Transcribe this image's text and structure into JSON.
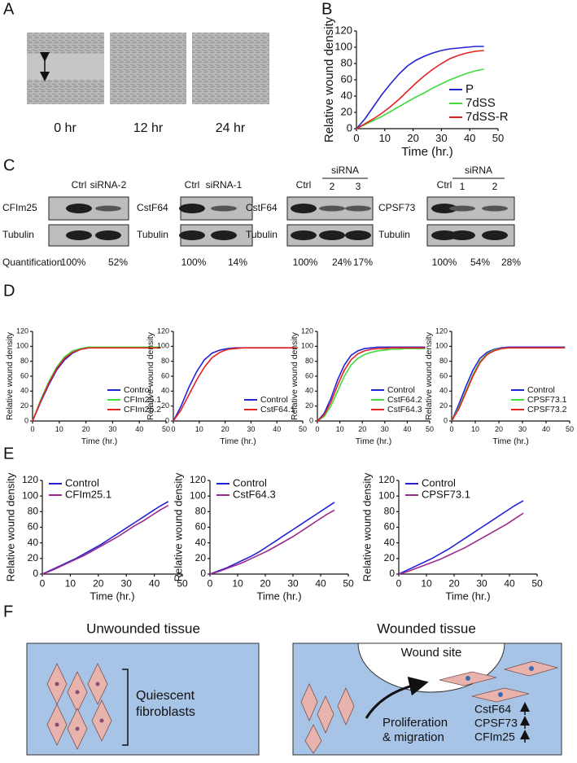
{
  "panels": [
    "A",
    "B",
    "C",
    "D",
    "E",
    "F"
  ],
  "scratch_times": [
    "0 hr",
    "12 hr",
    "24 hr"
  ],
  "quantification_label": "Quantification",
  "blots": [
    {
      "lanes": [
        "Ctrl",
        "siRNA-2"
      ],
      "rows": [
        "CFIm25",
        "Tubulin"
      ],
      "quantification": [
        "100%",
        "52%"
      ]
    },
    {
      "lanes": [
        "Ctrl",
        "siRNA-1"
      ],
      "rows": [
        "CstF64",
        "Tubulin"
      ],
      "quantification": [
        "100%",
        "14%"
      ]
    },
    {
      "lanes": [
        "Ctrl",
        "2",
        "3"
      ],
      "group": "siRNA",
      "rows": [
        "CstF64",
        "Tubulin"
      ],
      "quantification": [
        "100%",
        "24%",
        "17%"
      ]
    },
    {
      "lanes": [
        "Ctrl",
        "1",
        "2"
      ],
      "group": "siRNA",
      "rows": [
        "CPSF73",
        "Tubulin"
      ],
      "quantification": [
        "100%",
        "54%",
        "28%"
      ]
    }
  ],
  "diagram": {
    "left_title": "Unwounded tissue",
    "left_label": [
      "Quiescent",
      "fibroblasts"
    ],
    "right_title": "Wounded tissue",
    "wound_site": "Wound site",
    "process": [
      "Proliferation",
      "& migration"
    ],
    "genes": [
      "CstF64",
      "CPSF73",
      "CFIm25"
    ]
  },
  "chart_data": [
    {
      "type": "line",
      "x_label": "Time (hr.)",
      "y_label": "Relative wound density",
      "x": [
        0,
        3,
        6,
        9,
        12,
        15,
        18,
        21,
        24,
        27,
        30,
        33,
        36,
        39,
        42,
        45
      ],
      "xlim": [
        0,
        50
      ],
      "xticks": [
        0,
        10,
        20,
        30,
        40,
        50
      ],
      "ylim": [
        0,
        120
      ],
      "yticks": [
        0,
        20,
        40,
        60,
        80,
        100,
        120
      ],
      "legend": "lower right",
      "series": [
        {
          "name": "P",
          "color": "#2323d6",
          "values": [
            0,
            12,
            27,
            42,
            55,
            67,
            77,
            84,
            89,
            93,
            96,
            98,
            99,
            100,
            101,
            101
          ]
        },
        {
          "name": "7dSS",
          "color": "#3fdc3f",
          "values": [
            0,
            5,
            10,
            15,
            21,
            27,
            33,
            39,
            44,
            50,
            55,
            60,
            64,
            68,
            71,
            73
          ]
        },
        {
          "name": "7dSS-R",
          "color": "#e42222",
          "values": [
            0,
            6,
            12,
            19,
            27,
            36,
            46,
            56,
            65,
            73,
            80,
            86,
            90,
            93,
            95,
            96
          ]
        }
      ]
    },
    {
      "type": "line",
      "x_label": "Time (hr.)",
      "y_label": "Relative wound density",
      "x": [
        0,
        3,
        6,
        9,
        12,
        15,
        18,
        21,
        24,
        27,
        30,
        33,
        36,
        39,
        42,
        45,
        48
      ],
      "xlim": [
        0,
        50
      ],
      "xticks": [
        0,
        10,
        20,
        30,
        40,
        50
      ],
      "ylim": [
        0,
        120
      ],
      "yticks": [
        0,
        20,
        40,
        60,
        80,
        100,
        120
      ],
      "legend": "lower right",
      "series": [
        {
          "name": "Control",
          "color": "#2323d6",
          "values": [
            0,
            25,
            48,
            68,
            82,
            91,
            96,
            98,
            99,
            99,
            99,
            99,
            99,
            99,
            99,
            99,
            99
          ]
        },
        {
          "name": "CFIm25.1",
          "color": "#3fdc3f",
          "values": [
            0,
            28,
            52,
            72,
            86,
            94,
            97,
            99,
            99,
            99,
            99,
            99,
            99,
            99,
            99,
            99,
            99
          ]
        },
        {
          "name": "CFIm25.2",
          "color": "#e42222",
          "values": [
            0,
            26,
            50,
            70,
            84,
            92,
            96,
            98,
            98,
            98,
            98,
            98,
            98,
            98,
            98,
            98,
            98
          ]
        }
      ]
    },
    {
      "type": "line",
      "x_label": "Time (hr.)",
      "y_label": "Relative wound density",
      "x": [
        0,
        3,
        6,
        9,
        12,
        15,
        18,
        21,
        24,
        27,
        30,
        33,
        36,
        39,
        42,
        45,
        48
      ],
      "xlim": [
        0,
        50
      ],
      "xticks": [
        0,
        10,
        20,
        30,
        40,
        50
      ],
      "ylim": [
        0,
        120
      ],
      "yticks": [
        0,
        20,
        40,
        60,
        80,
        100,
        120
      ],
      "legend": "lower right",
      "series": [
        {
          "name": "Control",
          "color": "#2323d6",
          "values": [
            0,
            20,
            45,
            66,
            82,
            91,
            95,
            97,
            98,
            98,
            98,
            98,
            98,
            98,
            98,
            98,
            98
          ]
        },
        {
          "name": "CstF64.1",
          "color": "#e42222",
          "values": [
            0,
            15,
            35,
            55,
            72,
            85,
            92,
            96,
            97,
            98,
            98,
            98,
            98,
            98,
            98,
            98,
            98
          ]
        }
      ]
    },
    {
      "type": "line",
      "x_label": "Time (hr.)",
      "y_label": "Relative wound density",
      "x": [
        0,
        3,
        6,
        9,
        12,
        15,
        18,
        21,
        24,
        27,
        30,
        33,
        36,
        39,
        42,
        45,
        48
      ],
      "xlim": [
        0,
        50
      ],
      "xticks": [
        0,
        10,
        20,
        30,
        40,
        50
      ],
      "ylim": [
        0,
        120
      ],
      "yticks": [
        0,
        20,
        40,
        60,
        80,
        100,
        120
      ],
      "legend": "lower right",
      "series": [
        {
          "name": "Control",
          "color": "#2323d6",
          "values": [
            0,
            10,
            30,
            55,
            75,
            88,
            94,
            97,
            98,
            99,
            99,
            99,
            99,
            99,
            99,
            99,
            99
          ]
        },
        {
          "name": "CstF64.2",
          "color": "#3fdc3f",
          "values": [
            0,
            6,
            20,
            40,
            60,
            75,
            84,
            89,
            92,
            94,
            95,
            96,
            96,
            97,
            97,
            97,
            97
          ]
        },
        {
          "name": "CstF64.3",
          "color": "#e42222",
          "values": [
            0,
            8,
            25,
            48,
            68,
            82,
            90,
            94,
            96,
            97,
            97,
            98,
            98,
            98,
            98,
            98,
            98
          ]
        }
      ]
    },
    {
      "type": "line",
      "x_label": "Time (hr.)",
      "y_label": "Relative wound density",
      "x": [
        0,
        3,
        6,
        9,
        12,
        15,
        18,
        21,
        24,
        27,
        30,
        33,
        36,
        39,
        42,
        45,
        48
      ],
      "xlim": [
        0,
        50
      ],
      "xticks": [
        0,
        10,
        20,
        30,
        40,
        50
      ],
      "ylim": [
        0,
        120
      ],
      "yticks": [
        0,
        20,
        40,
        60,
        80,
        100,
        120
      ],
      "legend": "lower right",
      "series": [
        {
          "name": "Control",
          "color": "#2323d6",
          "values": [
            0,
            22,
            46,
            68,
            84,
            92,
            96,
            98,
            99,
            99,
            99,
            99,
            99,
            99,
            99,
            99,
            99
          ]
        },
        {
          "name": "CPSF73.1",
          "color": "#3fdc3f",
          "values": [
            0,
            18,
            40,
            62,
            80,
            90,
            95,
            97,
            98,
            98,
            98,
            98,
            98,
            98,
            98,
            98,
            98
          ]
        },
        {
          "name": "CPSF73.2",
          "color": "#e42222",
          "values": [
            0,
            16,
            38,
            60,
            78,
            89,
            94,
            97,
            98,
            98,
            98,
            98,
            98,
            98,
            98,
            98,
            98
          ]
        }
      ]
    },
    {
      "type": "line",
      "x_label": "Time (hr.)",
      "y_label": "Relative wound density",
      "x": [
        0,
        3,
        6,
        9,
        12,
        15,
        18,
        21,
        24,
        27,
        30,
        33,
        36,
        39,
        42,
        45
      ],
      "xlim": [
        0,
        50
      ],
      "xticks": [
        0,
        10,
        20,
        30,
        40,
        50
      ],
      "ylim": [
        0,
        120
      ],
      "yticks": [
        0,
        20,
        40,
        60,
        80,
        100,
        120
      ],
      "legend": "upper left",
      "series": [
        {
          "name": "Control",
          "color": "#2323d6",
          "values": [
            0,
            5,
            10,
            15,
            20,
            26,
            32,
            38,
            45,
            52,
            59,
            66,
            73,
            80,
            87,
            93
          ]
        },
        {
          "name": "CFIm25.1",
          "color": "#9a2a8c",
          "values": [
            0,
            4,
            9,
            14,
            19,
            24,
            30,
            36,
            42,
            48,
            55,
            62,
            68,
            75,
            82,
            88
          ]
        }
      ]
    },
    {
      "type": "line",
      "x_label": "Time (hr.)",
      "y_label": "Relative wound density",
      "x": [
        0,
        3,
        6,
        9,
        12,
        15,
        18,
        21,
        24,
        27,
        30,
        33,
        36,
        39,
        42,
        45
      ],
      "xlim": [
        0,
        50
      ],
      "xticks": [
        0,
        10,
        20,
        30,
        40,
        50
      ],
      "ylim": [
        0,
        120
      ],
      "yticks": [
        0,
        20,
        40,
        60,
        80,
        100,
        120
      ],
      "legend": "upper left",
      "series": [
        {
          "name": "Control",
          "color": "#2323d6",
          "values": [
            0,
            4,
            8,
            13,
            18,
            23,
            29,
            36,
            43,
            50,
            57,
            64,
            71,
            78,
            85,
            92
          ]
        },
        {
          "name": "CstF64.3",
          "color": "#9a2a8c",
          "values": [
            0,
            3,
            7,
            11,
            15,
            20,
            25,
            30,
            36,
            42,
            48,
            55,
            62,
            69,
            76,
            82
          ]
        }
      ]
    },
    {
      "type": "line",
      "x_label": "Time (hr.)",
      "y_label": "Relative wound density",
      "x": [
        0,
        3,
        6,
        9,
        12,
        15,
        18,
        21,
        24,
        27,
        30,
        33,
        36,
        39,
        42,
        45
      ],
      "xlim": [
        0,
        50
      ],
      "xticks": [
        0,
        10,
        20,
        30,
        40,
        50
      ],
      "ylim": [
        0,
        120
      ],
      "yticks": [
        0,
        20,
        40,
        60,
        80,
        100,
        120
      ],
      "legend": "upper left",
      "series": [
        {
          "name": "Control",
          "color": "#2323d6",
          "values": [
            0,
            5,
            10,
            15,
            20,
            26,
            32,
            39,
            46,
            53,
            60,
            67,
            74,
            81,
            88,
            94
          ]
        },
        {
          "name": "CPSF73.1",
          "color": "#9a2a8c",
          "values": [
            0,
            3,
            7,
            11,
            15,
            19,
            24,
            29,
            34,
            40,
            46,
            52,
            58,
            64,
            71,
            78
          ]
        }
      ]
    }
  ]
}
